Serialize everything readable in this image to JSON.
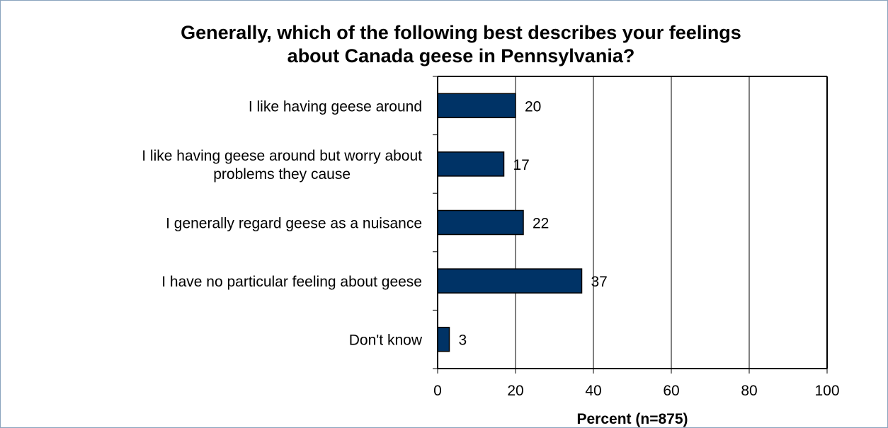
{
  "chart_data": {
    "type": "bar",
    "orientation": "horizontal",
    "title_lines": [
      "Generally, which of the following best describes your feelings",
      "about Canada geese in Pennsylvania?"
    ],
    "categories": [
      [
        "I like having geese around"
      ],
      [
        "I like having geese around but worry about",
        "problems they cause"
      ],
      [
        "I generally regard geese as a nuisance"
      ],
      [
        "I have no particular feeling about geese"
      ],
      [
        "Don't know"
      ]
    ],
    "values": [
      20,
      17,
      22,
      37,
      3
    ],
    "data_labels": [
      "20",
      "17",
      "22",
      "37",
      "3"
    ],
    "xlabel": "Percent (n=875)",
    "xlim": [
      0,
      100
    ],
    "xticks": [
      "0",
      "20",
      "40",
      "60",
      "80",
      "100"
    ],
    "xtick_values": [
      0,
      20,
      40,
      60,
      80,
      100
    ],
    "grid": "vertical",
    "colors": {
      "bar": "#003366",
      "bar_border": "#000000",
      "grid": "#000000",
      "frame": "#8aa3bd"
    }
  }
}
